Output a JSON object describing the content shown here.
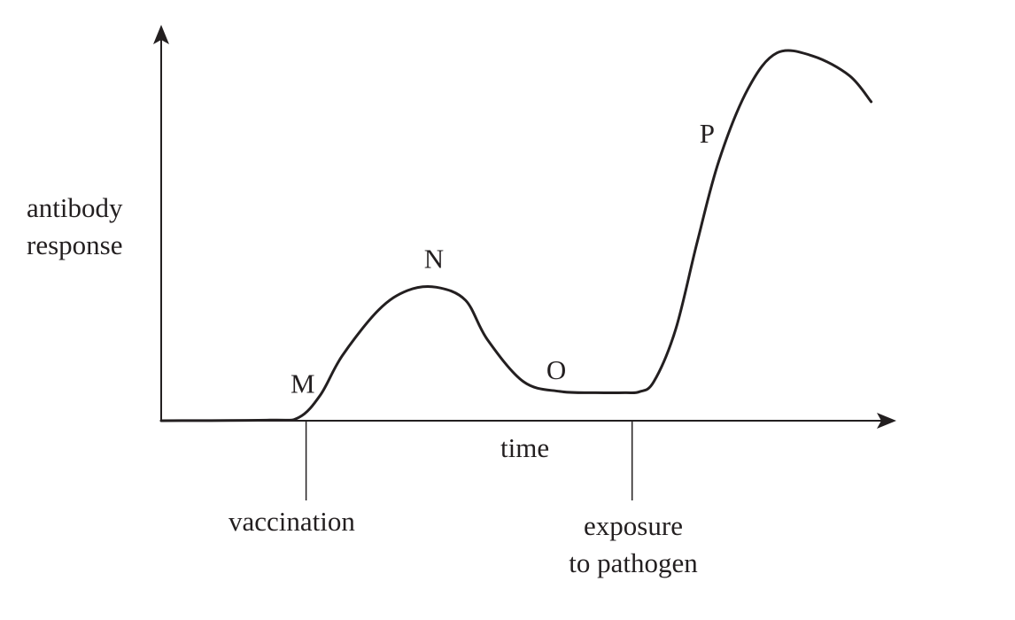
{
  "chart_data": {
    "type": "line",
    "title": "",
    "xlabel": "time",
    "ylabel_lines": [
      "antibody",
      "response"
    ],
    "x_markers": [
      {
        "label": "vaccination",
        "x": 20
      },
      {
        "label_lines": [
          "exposure",
          "to pathogen"
        ],
        "x": 65
      }
    ],
    "series": [
      {
        "x": [
          0,
          15,
          19,
          22,
          25,
          30,
          34,
          38,
          42,
          45,
          50,
          55,
          60,
          64,
          66,
          68,
          71,
          74,
          77,
          81,
          85,
          90,
          95,
          98
        ],
        "y": [
          0,
          0.2,
          1,
          8,
          20,
          34,
          40,
          41,
          37,
          25,
          12,
          9,
          8.6,
          8.6,
          8.9,
          12,
          28,
          55,
          80,
          102,
          113,
          112,
          106,
          98
        ]
      }
    ],
    "point_labels": [
      {
        "text": "M",
        "x": 22,
        "y": 8
      },
      {
        "text": "N",
        "x": 38,
        "y": 41
      },
      {
        "text": "O",
        "x": 55,
        "y": 9
      },
      {
        "text": "P",
        "x": 76,
        "y": 80
      }
    ],
    "xlim": [
      0,
      100
    ],
    "ylim": [
      0,
      120
    ],
    "grid": false,
    "legend": "none"
  },
  "colors": {
    "ink": "#231f20"
  }
}
